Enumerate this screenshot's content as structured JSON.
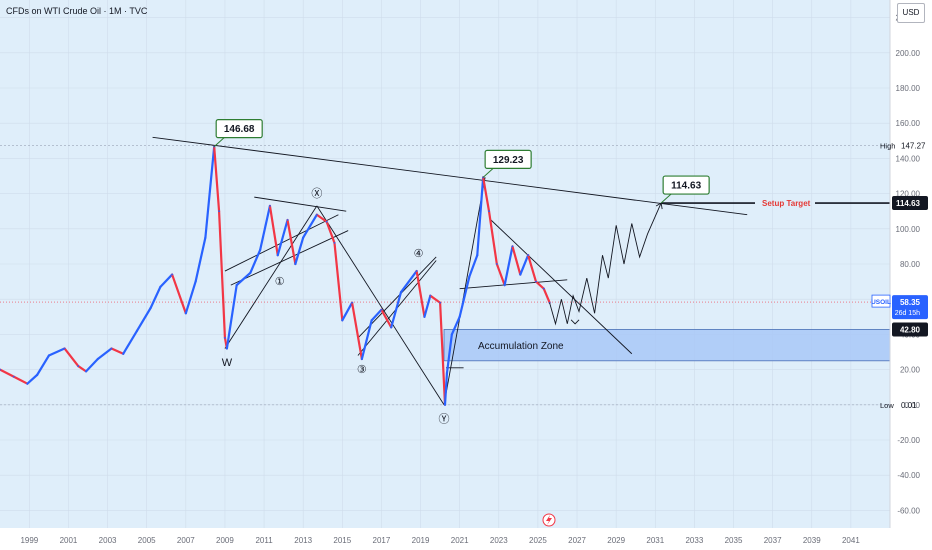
{
  "header": {
    "title": "CFDs on WTI Crude Oil · 1M · TVC",
    "currency": "USD"
  },
  "chart_data": {
    "type": "line",
    "title": "CFDs on WTI Crude Oil · 1M · TVC",
    "symbol": "USOIL",
    "current_price": "58.35",
    "countdown": "26d 15h",
    "xlim": [
      1997.5,
      2043
    ],
    "ylim": [
      -70,
      230
    ],
    "x_ticks": [
      "1999",
      "2001",
      "2003",
      "2005",
      "2007",
      "2009",
      "2011",
      "2013",
      "2015",
      "2017",
      "2019",
      "2021",
      "2023",
      "2025",
      "2027",
      "2029",
      "2031",
      "2033",
      "2035",
      "2037",
      "2039",
      "2041"
    ],
    "y_ticks": [
      "220.00",
      "200.00",
      "180.00",
      "160.00",
      "140.00",
      "120.00",
      "100.00",
      "80.00",
      "60.00",
      "40.00",
      "20.00",
      "0.00",
      "-20.00",
      "-40.00",
      "-60.00"
    ],
    "price_series": {
      "name": "USOIL",
      "points": [
        [
          1997.5,
          20
        ],
        [
          1998.2,
          16
        ],
        [
          1998.9,
          12
        ],
        [
          1999.4,
          17
        ],
        [
          2000.0,
          28
        ],
        [
          2000.8,
          32
        ],
        [
          2001.5,
          22
        ],
        [
          2001.9,
          19
        ],
        [
          2002.5,
          26
        ],
        [
          2003.2,
          32
        ],
        [
          2003.8,
          29
        ],
        [
          2004.5,
          42
        ],
        [
          2005.2,
          55
        ],
        [
          2005.7,
          67
        ],
        [
          2006.3,
          74
        ],
        [
          2007.0,
          52
        ],
        [
          2007.5,
          70
        ],
        [
          2008.0,
          95
        ],
        [
          2008.45,
          146.68
        ],
        [
          2008.7,
          110
        ],
        [
          2009.0,
          38
        ],
        [
          2009.1,
          32
        ],
        [
          2009.6,
          68
        ],
        [
          2010.3,
          75
        ],
        [
          2010.8,
          88
        ],
        [
          2011.3,
          113
        ],
        [
          2011.7,
          85
        ],
        [
          2012.2,
          105
        ],
        [
          2012.6,
          80
        ],
        [
          2013.0,
          95
        ],
        [
          2013.7,
          108
        ],
        [
          2014.2,
          104
        ],
        [
          2014.6,
          92
        ],
        [
          2015.0,
          48
        ],
        [
          2015.5,
          58
        ],
        [
          2016.0,
          26
        ],
        [
          2016.5,
          48
        ],
        [
          2017.0,
          54
        ],
        [
          2017.5,
          44
        ],
        [
          2018.0,
          64
        ],
        [
          2018.8,
          76
        ],
        [
          2019.2,
          50
        ],
        [
          2019.5,
          62
        ],
        [
          2020.0,
          58
        ],
        [
          2020.25,
          0.01
        ],
        [
          2020.35,
          18
        ],
        [
          2020.6,
          40
        ],
        [
          2021.0,
          50
        ],
        [
          2021.5,
          73
        ],
        [
          2021.9,
          85
        ],
        [
          2022.2,
          129.23
        ],
        [
          2022.5,
          110
        ],
        [
          2022.9,
          80
        ],
        [
          2023.3,
          68
        ],
        [
          2023.7,
          90
        ],
        [
          2024.1,
          74
        ],
        [
          2024.5,
          85
        ],
        [
          2024.9,
          70
        ],
        [
          2025.3,
          66
        ],
        [
          2025.6,
          58
        ]
      ]
    },
    "projection": [
      [
        2025.6,
        58
      ],
      [
        2025.9,
        46
      ],
      [
        2026.2,
        60
      ],
      [
        2026.5,
        46
      ],
      [
        2026.8,
        62
      ],
      [
        2027.1,
        53
      ],
      [
        2027.5,
        72
      ],
      [
        2027.9,
        52
      ],
      [
        2028.3,
        85
      ],
      [
        2028.6,
        72
      ],
      [
        2029.0,
        102
      ],
      [
        2029.4,
        80
      ],
      [
        2029.8,
        103
      ],
      [
        2030.2,
        84
      ],
      [
        2030.6,
        97
      ],
      [
        2031.3,
        114.63
      ]
    ],
    "trendlines": [
      {
        "x": [
          2005.3,
          2035.7
        ],
        "y": [
          152,
          108
        ]
      },
      {
        "x": [
          2020.3,
          2021.2
        ],
        "y": [
          21,
          21
        ]
      },
      {
        "x": [
          2009.0,
          2013.7
        ],
        "y": [
          32,
          113
        ]
      },
      {
        "x": [
          2013.7,
          2020.2
        ],
        "y": [
          113,
          0.01
        ]
      },
      {
        "x": [
          2020.2,
          2022.3
        ],
        "y": [
          0.01,
          129.23
        ]
      },
      {
        "x": [
          2010.5,
          2015.2
        ],
        "y": [
          118,
          110
        ]
      },
      {
        "x": [
          2009.3,
          2015.3
        ],
        "y": [
          68,
          99
        ]
      },
      {
        "x": [
          2009.0,
          2014.8
        ],
        "y": [
          76,
          108
        ]
      },
      {
        "x": [
          2015.8,
          2019.8
        ],
        "y": [
          28,
          82
        ]
      },
      {
        "x": [
          2015.8,
          2019.8
        ],
        "y": [
          38,
          84
        ]
      },
      {
        "x": [
          2021.0,
          2026.5
        ],
        "y": [
          66,
          71
        ]
      },
      {
        "x": [
          2022.6,
          2029.8
        ],
        "y": [
          105,
          29
        ]
      }
    ],
    "accumulation_zone": {
      "label": "Accumulation Zone",
      "y_from": 25,
      "y_to": 42.8,
      "x_from": 2020.2
    },
    "setup_target": {
      "label": "Setup Target",
      "y": 114.63
    },
    "callouts": [
      {
        "label": "146.68",
        "x": 2008.45,
        "y": 146.68
      },
      {
        "label": "129.23",
        "x": 2022.2,
        "y": 129.23
      },
      {
        "label": "114.63",
        "x": 2031.3,
        "y": 114.63
      }
    ],
    "wave_labels": [
      {
        "label": "W",
        "x": 2009.1,
        "y": 22,
        "style": "plain"
      },
      {
        "label": "①",
        "x": 2011.8,
        "y": 68,
        "style": "plain"
      },
      {
        "label": "Ⓧ",
        "x": 2013.7,
        "y": 118,
        "style": "plain"
      },
      {
        "label": "③",
        "x": 2016.0,
        "y": 18,
        "style": "plain"
      },
      {
        "label": "④",
        "x": 2018.9,
        "y": 84,
        "style": "plain"
      },
      {
        "label": "Ⓨ",
        "x": 2020.2,
        "y": -10,
        "style": "plain"
      }
    ],
    "reference_lines": [
      {
        "label": "High",
        "value": "147.27",
        "y": 147.27
      },
      {
        "label": "Low",
        "value": "0.01",
        "y": 0.01
      }
    ],
    "axis_badges": [
      {
        "label": "114.63",
        "y": 114.63,
        "style": "black"
      },
      {
        "label": "42.80",
        "y": 42.8,
        "style": "black"
      }
    ],
    "colors": {
      "background": "#dfeefa",
      "bullish": "#2962ff",
      "bearish": "#f23645",
      "trendline": "#131722",
      "zone": "#a9c8f7",
      "callout_border": "#2e7d32",
      "target_text": "#e53935",
      "price_badge": "#2962ff"
    }
  }
}
